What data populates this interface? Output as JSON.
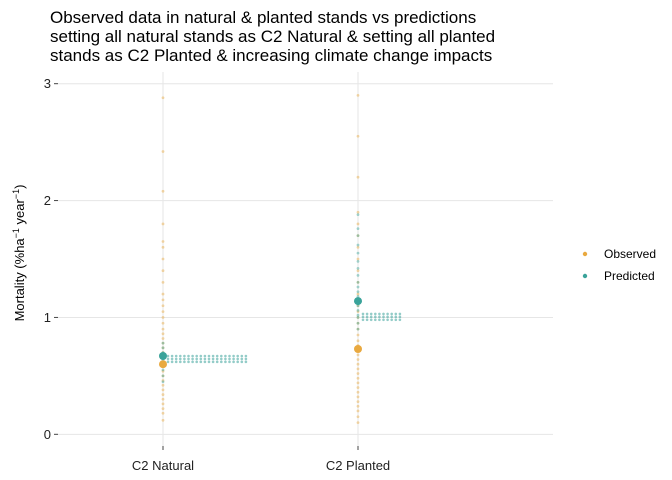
{
  "chart_data": {
    "type": "scatter",
    "title_lines": [
      "Observed data in natural & planted stands vs predictions",
      "setting all natural stands as C2 Natural & setting all planted",
      "stands as C2 Planted & increasing climate change impacts"
    ],
    "ylabel_parts": [
      "Mortality (%ha",
      "−1",
      " year",
      "−1",
      ")"
    ],
    "xlabel": "",
    "categories": [
      "C2 Natural",
      "C2 Planted"
    ],
    "ylim": [
      -0.1,
      3.1
    ],
    "yticks": [
      0,
      1,
      2,
      3
    ],
    "grid": true,
    "legend_position": "right",
    "series": [
      {
        "name": "Observed",
        "color": "#E9A93F",
        "means": [
          0.6,
          0.73
        ],
        "points": [
          [
            0.12,
            0.18,
            0.22,
            0.26,
            0.3,
            0.34,
            0.38,
            0.42,
            0.46,
            0.5,
            0.54,
            0.58,
            0.62,
            0.66,
            0.7,
            0.74,
            0.78,
            0.82,
            0.86,
            0.9,
            0.95,
            1.0,
            1.05,
            1.1,
            1.15,
            1.2,
            1.3,
            1.4,
            1.5,
            1.6,
            1.65,
            1.8,
            2.08,
            2.42,
            2.88
          ],
          [
            0.1,
            0.15,
            0.2,
            0.24,
            0.28,
            0.32,
            0.36,
            0.4,
            0.44,
            0.48,
            0.52,
            0.56,
            0.6,
            0.64,
            0.68,
            0.72,
            0.76,
            0.8,
            0.85,
            0.9,
            0.95,
            1.0,
            1.05,
            1.1,
            1.15,
            1.2,
            1.3,
            1.4,
            1.5,
            1.6,
            1.7,
            1.8,
            1.9,
            2.2,
            2.55,
            2.9
          ]
        ]
      },
      {
        "name": "Predicted",
        "color": "#3AA39A",
        "means": [
          0.67,
          1.14
        ],
        "points": [
          [
            0.45,
            0.5,
            0.55,
            0.6,
            0.62,
            0.64,
            0.66,
            0.68,
            0.7,
            0.74,
            0.78
          ],
          [
            0.9,
            0.95,
            1.0,
            1.02,
            1.06,
            1.1,
            1.14,
            1.18,
            1.22,
            1.26,
            1.3,
            1.36,
            1.42,
            1.48,
            1.55,
            1.62,
            1.7,
            1.76,
            1.88
          ]
        ]
      }
    ]
  }
}
